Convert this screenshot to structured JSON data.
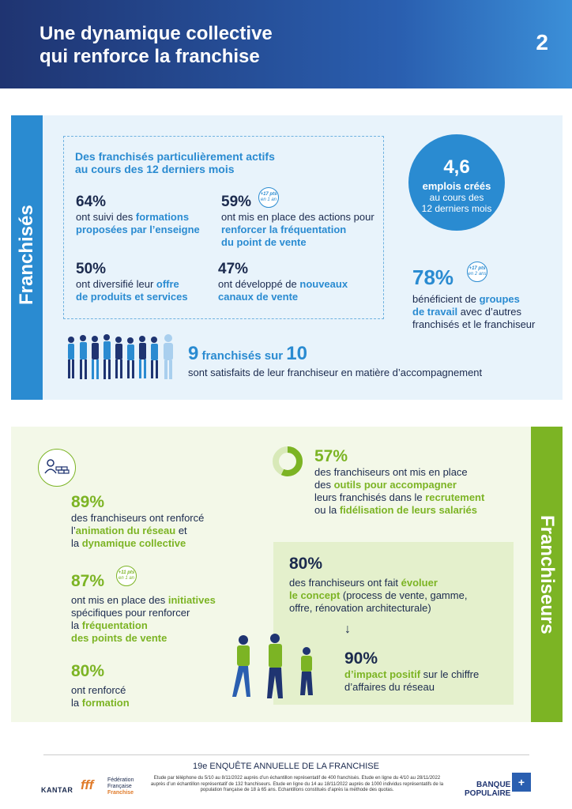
{
  "header": {
    "title_line1": "Une dynamique collective",
    "title_line2": "qui renforce la franchise",
    "number": "2"
  },
  "franchises": {
    "side_label": "Franchisés",
    "box_title_line1": "Des franchisés particulièrement actifs",
    "box_title_line2": "au cours des 12 derniers mois",
    "s1": {
      "value": "64%",
      "t1": "ont suivi des ",
      "h1": "formations",
      "h2": "proposées par l’enseigne"
    },
    "s2": {
      "value": "59%",
      "badge_top": "+17 pts",
      "badge_bot": "en 1 an",
      "t1": "ont mis en place des actions pour",
      "h1": "renforcer la fréquentation",
      "h2": "du point de vente"
    },
    "s3": {
      "value": "50%",
      "t1": "ont diversifié leur ",
      "h1": "offre",
      "h2": "de produits et services"
    },
    "s4": {
      "value": "47%",
      "t1": "ont développé de ",
      "h1": "nouveaux",
      "h2": "canaux de vente"
    },
    "circle": {
      "value": "4,6",
      "l1": "emplois créés",
      "l2": "au cours des",
      "l3": "12 derniers mois"
    },
    "s5": {
      "value": "78%",
      "badge_top": "+17 pts",
      "badge_bot": "en 2 ans",
      "t1": "bénéficient de ",
      "h1": "groupes",
      "h2": "de travail",
      "t2": " avec d’autres",
      "t3": "franchisés et le franchiseur"
    },
    "s6": {
      "n1": "9",
      "mid": " franchisés sur ",
      "n2": "10",
      "line2": "sont satisfaits de leur franchiseur en matière d’accompagnement"
    }
  },
  "franchiseurs": {
    "side_label": "Franchiseurs",
    "s1": {
      "value": "89%",
      "t1": "des franchiseurs ont renforcé",
      "t2": "l’",
      "h1": "animation du réseau",
      "t3": " et",
      "t4": "la ",
      "h2": "dynamique collective"
    },
    "s2": {
      "value": "87%",
      "badge_top": "+11 pts",
      "badge_bot": "en 1 an",
      "t1": "ont mis en place des ",
      "h1": "initiatives",
      "t2": "spécifiques pour renforcer",
      "t3": "la ",
      "h2": "fréquentation",
      "h3": "des points de vente"
    },
    "s3": {
      "value": "80%",
      "t1": "ont renforcé",
      "t2": "la ",
      "h1": "formation"
    },
    "s4": {
      "value": "57%",
      "t1": "des franchiseurs ont mis en place",
      "t2": "des ",
      "h1": "outils pour accompagner",
      "t3": "leurs franchisés dans le ",
      "h2": "recrutement",
      "t4": "ou la ",
      "h3": "fidélisation de leurs salariés"
    },
    "s5": {
      "value": "80%",
      "t1": "des franchiseurs ont fait ",
      "h1": "évoluer",
      "h2": "le concept",
      "t2": " (process de vente, gamme,",
      "t3": "offre, rénovation architecturale)"
    },
    "arrow": "↓",
    "s6": {
      "value": "90%",
      "h1": "d’impact positif",
      "t1": " sur le chiffre",
      "t2": "d’affaires du réseau"
    }
  },
  "footer": {
    "title": "19e ENQUÊTE ANNUELLE DE LA FRANCHISE",
    "note": "Etude par téléphone du 5/10 au 8/11/2022 auprès d’un échantillon représentatif de 400 franchisés. Etude en ligne du 4/10 au 28/11/2022 auprès d’un échantillon représentatif de 132 franchiseurs. Etude en ligne du 14 au 18/11/2022 auprès de 1000 individus représentatifs de la population française de 18 à 65 ans. Echantillons constitués d’après la méthode des quotas.",
    "kantar": "KANTAR",
    "fff_l1": "Fédération",
    "fff_l2": "Française",
    "fff_l3": "Franchise",
    "bp_l1": "BANQUE",
    "bp_l2": "POPULAIRE",
    "colors": {
      "blue": "#2a8bd1",
      "green": "#7cb424",
      "navy": "#1f3471"
    }
  }
}
